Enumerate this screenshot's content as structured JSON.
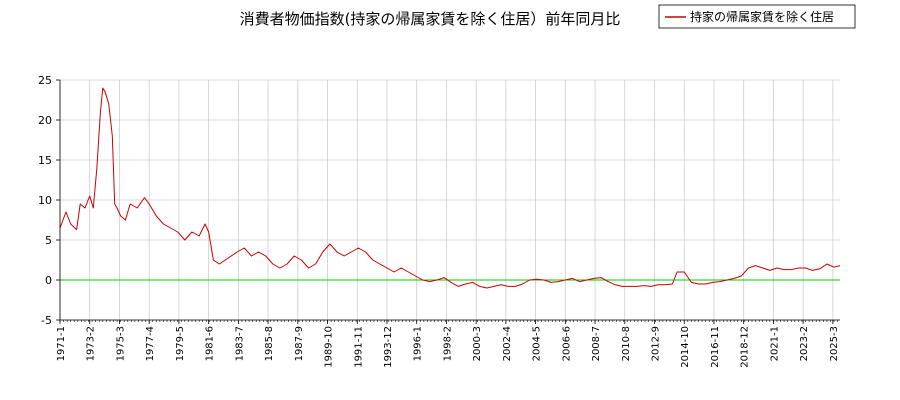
{
  "chart_data": {
    "type": "line",
    "title": "消費者物価指数(持家の帰属家賃を除く住居）前年同月比",
    "xlabel": "",
    "ylabel": "",
    "ylim": [
      -5,
      25
    ],
    "yticks": [
      "25",
      "20",
      "15",
      "10",
      "5",
      "0",
      "-5"
    ],
    "ytick_values": [
      25,
      20,
      15,
      10,
      5,
      0,
      -5
    ],
    "xticks": [
      "1971-1",
      "1973-2",
      "1975-3",
      "1977-4",
      "1979-5",
      "1981-6",
      "1983-7",
      "1985-8",
      "1987-9",
      "1989-10",
      "1991-11",
      "1993-12",
      "1996-1",
      "1998-2",
      "2000-3",
      "2002-4",
      "2004-5",
      "2006-6",
      "2008-7",
      "2010-8",
      "2012-9",
      "2014-10",
      "2016-11",
      "2018-12",
      "2021-1",
      "2023-2",
      "2025-3"
    ],
    "x_range": [
      "1971-01",
      "2025-09"
    ],
    "grid": true,
    "legend_position": "top-right",
    "colors": {
      "series": "#cc0000",
      "zero_line": "#00cc00",
      "grid": "#cccccc"
    },
    "series": [
      {
        "name": "持家の帰属家賃を除く住居",
        "x": [
          "1971-01",
          "1971-06",
          "1971-10",
          "1972-03",
          "1972-06",
          "1972-10",
          "1973-02",
          "1973-05",
          "1973-08",
          "1973-11",
          "1974-01",
          "1974-03",
          "1974-06",
          "1974-09",
          "1974-11",
          "1975-01",
          "1975-04",
          "1975-08",
          "1975-12",
          "1976-06",
          "1976-12",
          "1977-04",
          "1977-10",
          "1978-04",
          "1978-10",
          "1979-04",
          "1979-10",
          "1980-04",
          "1980-10",
          "1981-03",
          "1981-06",
          "1981-10",
          "1982-03",
          "1982-08",
          "1983-01",
          "1983-06",
          "1983-12",
          "1984-06",
          "1984-12",
          "1985-06",
          "1985-12",
          "1986-06",
          "1986-12",
          "1987-06",
          "1987-12",
          "1988-06",
          "1988-12",
          "1989-06",
          "1989-12",
          "1990-06",
          "1990-12",
          "1991-06",
          "1991-12",
          "1992-06",
          "1992-12",
          "1993-06",
          "1993-12",
          "1994-06",
          "1994-12",
          "1995-06",
          "1995-12",
          "1996-06",
          "1996-12",
          "1997-06",
          "1997-12",
          "1998-06",
          "1998-12",
          "1999-06",
          "1999-12",
          "2000-06",
          "2000-12",
          "2001-06",
          "2001-12",
          "2002-06",
          "2002-12",
          "2003-06",
          "2003-12",
          "2004-06",
          "2004-12",
          "2005-06",
          "2005-12",
          "2006-06",
          "2006-12",
          "2007-06",
          "2007-12",
          "2008-06",
          "2008-12",
          "2009-06",
          "2009-12",
          "2010-06",
          "2010-12",
          "2011-06",
          "2011-12",
          "2012-06",
          "2012-12",
          "2013-06",
          "2013-12",
          "2014-04",
          "2014-10",
          "2015-04",
          "2015-10",
          "2016-04",
          "2016-10",
          "2017-04",
          "2017-10",
          "2018-04",
          "2018-10",
          "2019-04",
          "2019-10",
          "2020-04",
          "2020-10",
          "2021-04",
          "2021-10",
          "2022-04",
          "2022-10",
          "2023-04",
          "2023-10",
          "2024-04",
          "2024-10",
          "2025-04",
          "2025-09"
        ],
        "values": [
          6.5,
          8.5,
          7.0,
          6.3,
          9.5,
          9.0,
          10.5,
          9.0,
          14.0,
          21.0,
          24.0,
          23.5,
          22.0,
          18.0,
          9.5,
          9.0,
          8.0,
          7.5,
          9.5,
          9.0,
          10.3,
          9.5,
          8.0,
          7.0,
          6.5,
          6.0,
          5.0,
          6.0,
          5.5,
          7.0,
          6.0,
          2.5,
          2.0,
          2.5,
          3.0,
          3.5,
          4.0,
          3.0,
          3.5,
          3.0,
          2.0,
          1.5,
          2.0,
          3.0,
          2.5,
          1.5,
          2.0,
          3.5,
          4.5,
          3.5,
          3.0,
          3.5,
          4.0,
          3.5,
          2.5,
          2.0,
          1.5,
          1.0,
          1.5,
          1.0,
          0.5,
          0.0,
          -0.2,
          0.0,
          0.3,
          -0.3,
          -0.8,
          -0.5,
          -0.3,
          -0.8,
          -1.0,
          -0.8,
          -0.6,
          -0.8,
          -0.8,
          -0.5,
          0.0,
          0.1,
          0.0,
          -0.3,
          -0.2,
          0.0,
          0.2,
          -0.2,
          0.0,
          0.2,
          0.3,
          -0.2,
          -0.6,
          -0.8,
          -0.8,
          -0.8,
          -0.7,
          -0.8,
          -0.6,
          -0.6,
          -0.5,
          1.0,
          1.0,
          -0.3,
          -0.5,
          -0.5,
          -0.3,
          -0.2,
          0.0,
          0.2,
          0.5,
          1.5,
          1.8,
          1.5,
          1.2,
          1.5,
          1.3,
          1.3,
          1.5,
          1.5,
          1.2,
          1.4,
          2.0,
          1.6,
          1.8
        ]
      }
    ]
  }
}
